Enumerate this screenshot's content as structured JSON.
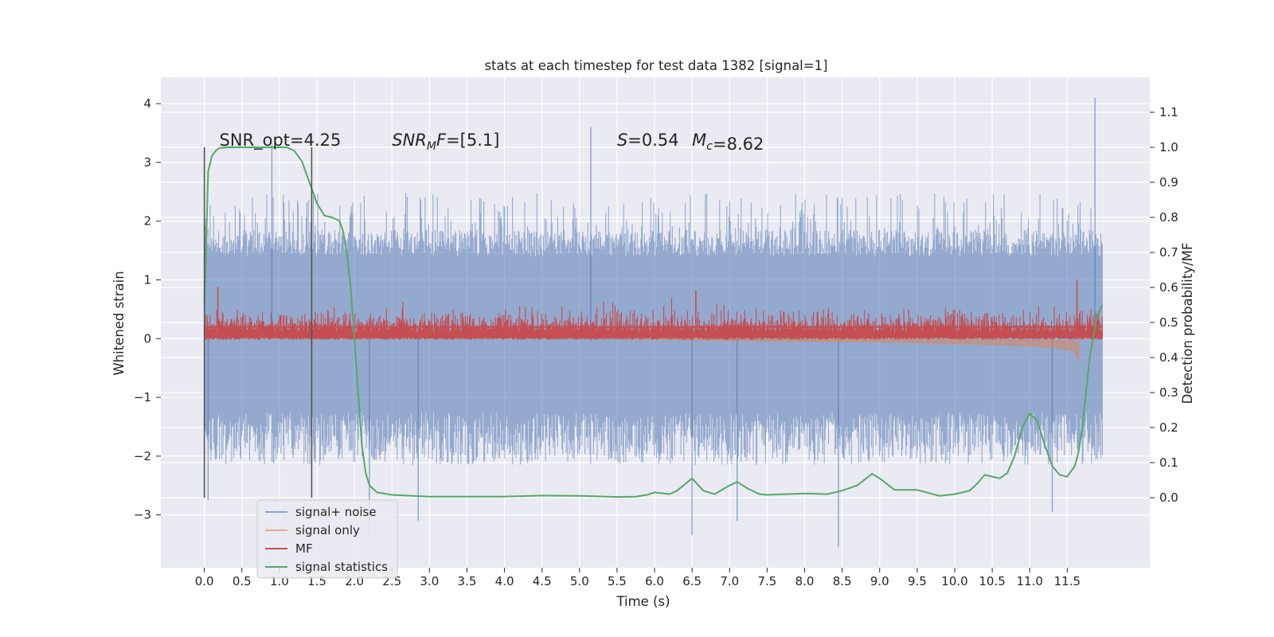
{
  "chart_data": {
    "type": "line",
    "title": "stats at each timestep for test data 1382 [signal=1]",
    "xlabel": "Time (s)",
    "ylabel_left": "Whitened strain",
    "ylabel_right": "Detection probability/MF",
    "x_ticks": [
      "0.0",
      "0.5",
      "1.0",
      "1.5",
      "2.0",
      "2.5",
      "3.0",
      "3.5",
      "4.0",
      "4.5",
      "5.0",
      "5.5",
      "6.0",
      "6.5",
      "7.0",
      "7.5",
      "8.0",
      "8.5",
      "9.0",
      "9.5",
      "10.0",
      "10.5",
      "11.0",
      "11.5"
    ],
    "y_left_ticks": [
      "4",
      "3",
      "2",
      "1",
      "0",
      "−1",
      "−2",
      "−3"
    ],
    "y_right_ticks": [
      "1.1",
      "1.0",
      "0.9",
      "0.8",
      "0.7",
      "0.6",
      "0.5",
      "0.4",
      "0.3",
      "0.2",
      "0.1",
      "0.0"
    ],
    "xlim": [
      -0.58,
      12.6
    ],
    "ylim_left": [
      -3.9,
      4.45
    ],
    "ylim_right": [
      -0.2,
      1.2
    ],
    "grid": true,
    "legend_position": "lower-left",
    "colors": {
      "background": "#eaeaf2",
      "signal_noise": "#4c72b0",
      "signal_only": "#dd8452",
      "mf": "#c44e52",
      "signal_statistics": "#55a868",
      "vline": "#555555"
    },
    "annotations": [
      {
        "text": "SNR_opt=4.25",
        "x": 0.2
      },
      {
        "text": "=[5.1]",
        "x": 2.5,
        "math_prefix": "SNR",
        "math_sub": "M",
        "math_suffix": "F"
      },
      {
        "text": "=0.54",
        "x": 5.5,
        "math_prefix": "S"
      },
      {
        "text": "=8.62",
        "x": 6.5,
        "math_prefix": "M",
        "math_sub": "c"
      }
    ],
    "vlines": [
      0.0,
      1.43
    ],
    "series": [
      {
        "name": "signal+ noise",
        "axis": "left",
        "style": "noise",
        "x_range": [
          0.0,
          11.97
        ],
        "band_core": [
          -1.25,
          1.4
        ],
        "spikes": [
          {
            "x": 0.05,
            "y": -2.75
          },
          {
            "x": 0.9,
            "y": 3.3
          },
          {
            "x": 2.2,
            "y": -3.4
          },
          {
            "x": 2.85,
            "y": -3.1
          },
          {
            "x": 5.15,
            "y": 3.6
          },
          {
            "x": 6.5,
            "y": -3.35
          },
          {
            "x": 7.1,
            "y": -3.1
          },
          {
            "x": 8.45,
            "y": -3.55
          },
          {
            "x": 11.3,
            "y": -2.95
          },
          {
            "x": 11.87,
            "y": 4.1
          }
        ]
      },
      {
        "name": "signal only",
        "axis": "left",
        "style": "chirp",
        "x": [
          0.0,
          4.0,
          6.0,
          7.0,
          8.0,
          9.0,
          10.0,
          10.5,
          11.0,
          11.3,
          11.5,
          11.6,
          11.65,
          11.66,
          11.7,
          11.97
        ],
        "y": [
          0.0,
          0.02,
          -0.02,
          -0.04,
          -0.06,
          -0.08,
          -0.12,
          -0.14,
          -0.18,
          -0.22,
          -0.26,
          -0.3,
          -0.55,
          0.0,
          0.0,
          0.0
        ]
      },
      {
        "name": "MF",
        "axis": "left",
        "style": "mf",
        "x_range": [
          0.0,
          11.97
        ],
        "baseline": 0.2,
        "spikes": [
          {
            "x": 0.18,
            "y": 0.88
          },
          {
            "x": 6.55,
            "y": 0.82
          },
          {
            "x": 11.63,
            "y": 1.0
          }
        ]
      },
      {
        "name": "signal statistics",
        "axis": "right",
        "style": "line",
        "x": [
          0.0,
          0.05,
          0.1,
          0.15,
          0.2,
          0.3,
          0.5,
          0.8,
          1.0,
          1.1,
          1.2,
          1.3,
          1.4,
          1.5,
          1.6,
          1.7,
          1.8,
          1.85,
          1.9,
          1.95,
          2.0,
          2.05,
          2.1,
          2.15,
          2.2,
          2.3,
          2.5,
          3.0,
          4.0,
          4.5,
          5.0,
          5.5,
          5.75,
          5.9,
          6.0,
          6.2,
          6.3,
          6.5,
          6.65,
          6.8,
          7.0,
          7.1,
          7.25,
          7.4,
          7.5,
          8.0,
          8.3,
          8.5,
          8.7,
          8.9,
          9.0,
          9.2,
          9.5,
          9.8,
          10.0,
          10.2,
          10.3,
          10.4,
          10.5,
          10.6,
          10.7,
          10.8,
          10.9,
          11.0,
          11.1,
          11.2,
          11.3,
          11.4,
          11.5,
          11.6,
          11.65,
          11.7,
          11.75,
          11.8,
          11.9,
          11.97
        ],
        "y": [
          0.55,
          0.93,
          0.975,
          0.99,
          0.998,
          1.0,
          1.0,
          1.0,
          1.0,
          1.0,
          0.99,
          0.96,
          0.9,
          0.84,
          0.805,
          0.8,
          0.79,
          0.76,
          0.7,
          0.6,
          0.45,
          0.3,
          0.15,
          0.07,
          0.035,
          0.015,
          0.008,
          0.003,
          0.003,
          0.006,
          0.005,
          0.002,
          0.003,
          0.008,
          0.015,
          0.01,
          0.02,
          0.055,
          0.02,
          0.01,
          0.035,
          0.045,
          0.025,
          0.01,
          0.008,
          0.012,
          0.01,
          0.02,
          0.035,
          0.068,
          0.055,
          0.022,
          0.022,
          0.005,
          0.01,
          0.02,
          0.04,
          0.065,
          0.06,
          0.055,
          0.07,
          0.12,
          0.2,
          0.24,
          0.22,
          0.15,
          0.09,
          0.065,
          0.06,
          0.09,
          0.13,
          0.2,
          0.3,
          0.4,
          0.52,
          0.55
        ]
      }
    ]
  }
}
